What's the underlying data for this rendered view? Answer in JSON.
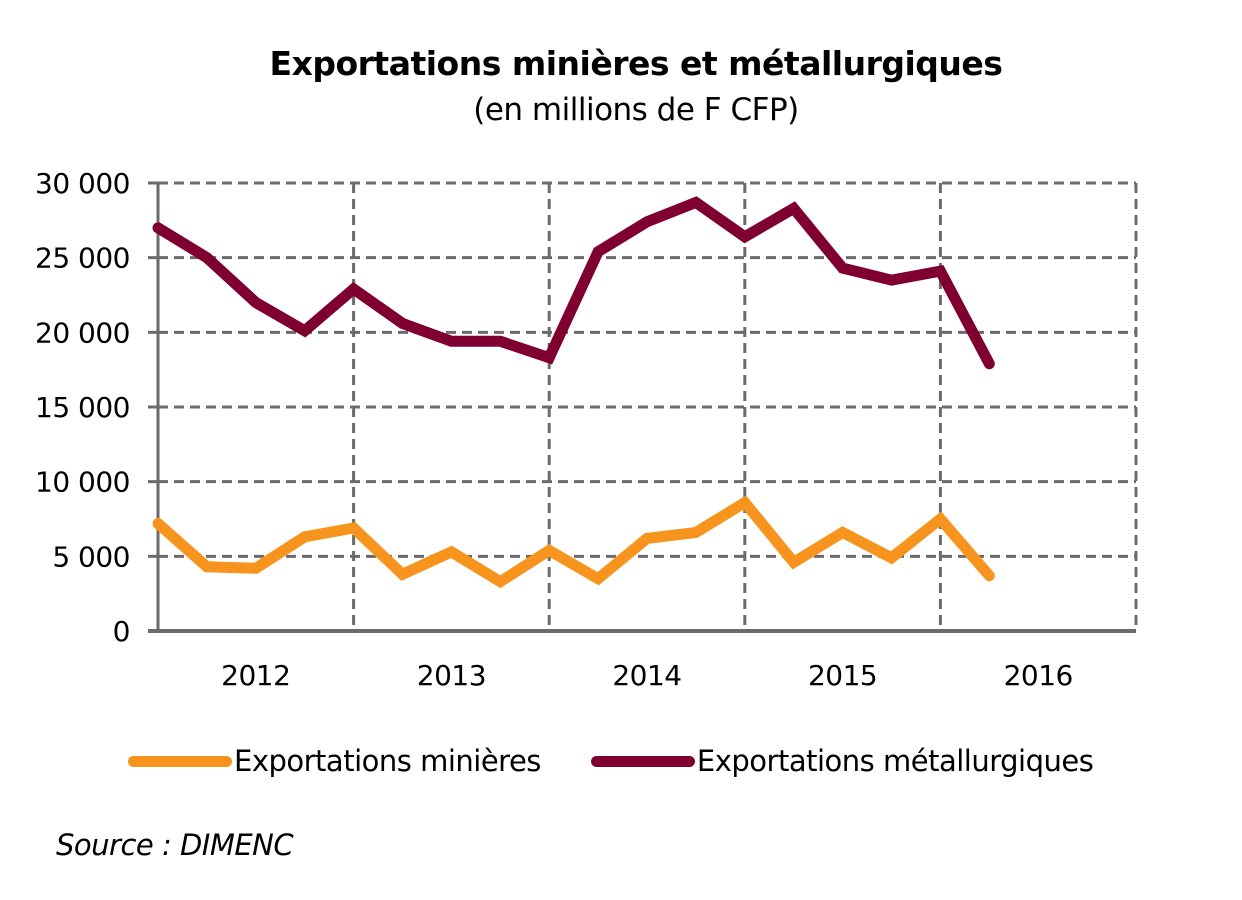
{
  "chart_data": {
    "type": "line",
    "title": "Exportations minières et métallurgiques",
    "subtitle": "(en millions de F CFP)",
    "xlabel": "",
    "ylabel": "",
    "ylim": [
      0,
      30000
    ],
    "yticks": [
      0,
      5000,
      10000,
      15000,
      20000,
      25000,
      30000
    ],
    "ytick_labels": [
      "0",
      "5 000",
      "10 000",
      "15 000",
      "20 000",
      "25 000",
      "30 000"
    ],
    "x_categories": [
      "2012",
      "2013",
      "2014",
      "2015",
      "2016"
    ],
    "x_periods_per_category": 4,
    "x": [
      "2011 T4",
      "2012 T1",
      "2012 T2",
      "2012 T3",
      "2012 T4",
      "2013 T1",
      "2013 T2",
      "2013 T3",
      "2013 T4",
      "2014 T1",
      "2014 T2",
      "2014 T3",
      "2014 T4",
      "2015 T1",
      "2015 T2",
      "2015 T3",
      "2015 T4",
      "2016 T1"
    ],
    "grid": true,
    "legend_position": "bottom",
    "series": [
      {
        "name": "Exportations minières",
        "color": "#F7941D",
        "values": [
          7200,
          4300,
          4200,
          6300,
          6900,
          3800,
          5300,
          3300,
          5400,
          3500,
          6200,
          6600,
          8600,
          4600,
          6600,
          4900,
          7500,
          3700
        ]
      },
      {
        "name": "Exportations métallurgiques",
        "color": "#7F0030",
        "values": [
          27000,
          25000,
          22000,
          20100,
          22900,
          20600,
          19400,
          19400,
          18300,
          25400,
          27400,
          28700,
          26400,
          28300,
          24300,
          23500,
          24100,
          17900
        ]
      }
    ]
  },
  "legend": {
    "items": [
      {
        "label": "Exportations minières",
        "color": "#F7941D"
      },
      {
        "label": "Exportations métallurgiques",
        "color": "#7F0030"
      }
    ]
  },
  "source": "Source : DIMENC"
}
